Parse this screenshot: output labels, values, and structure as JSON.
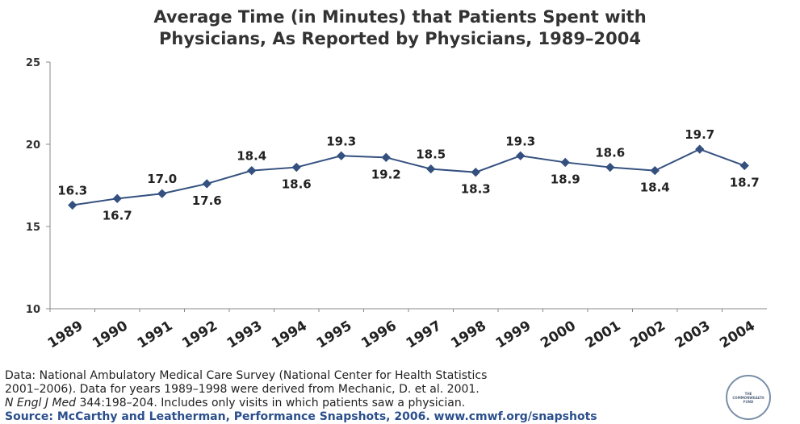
{
  "title_line1": "Average Time (in Minutes) that Patients Spent with",
  "title_line2": "Physicians, As Reported by Physicians, 1989–2004",
  "chart_data": {
    "type": "line",
    "title": "Average Time (in Minutes) that Patients Spent with Physicians, As Reported by Physicians, 1989–2004",
    "xlabel": "",
    "ylabel": "",
    "categories": [
      "1989",
      "1990",
      "1991",
      "1992",
      "1993",
      "1994",
      "1995",
      "1996",
      "1997",
      "1998",
      "1999",
      "2000",
      "2001",
      "2002",
      "2003",
      "2004"
    ],
    "series": [
      {
        "values": [
          16.3,
          16.7,
          17.0,
          17.6,
          18.4,
          18.6,
          19.3,
          19.2,
          18.5,
          18.3,
          19.3,
          18.9,
          18.6,
          18.4,
          19.7,
          18.7
        ]
      }
    ],
    "data_labels": [
      "16.3",
      "16.7",
      "17.0",
      "17.6",
      "18.4",
      "18.6",
      "19.3",
      "19.2",
      "18.5",
      "18.3",
      "19.3",
      "18.9",
      "18.6",
      "18.4",
      "19.7",
      "18.7"
    ],
    "label_positions": [
      "above",
      "below",
      "above",
      "below",
      "above",
      "below",
      "above",
      "below",
      "above",
      "below",
      "above",
      "below",
      "above",
      "below",
      "above",
      "below"
    ],
    "ylim": [
      10,
      25
    ],
    "yticks": [
      "10",
      "15",
      "20",
      "25"
    ],
    "grid": false,
    "legend": "none",
    "line_color": "#34507f"
  },
  "notes": {
    "line1": "Data: National Ambulatory Medical Care Survey (National Center for Health Statistics",
    "line2": "2001–2006). Data for years 1989–1998 were derived from Mechanic, D. et al. 2001.",
    "line3_journal": "N Engl J Med",
    "line3_rest": " 344:198–204. Includes only visits in which patients saw a physician.",
    "source": "Source: McCarthy and Leatherman, Performance Snapshots, 2006. www.cmwf.org/snapshots"
  },
  "logo_text": "THE COMMONWEALTH FUND"
}
